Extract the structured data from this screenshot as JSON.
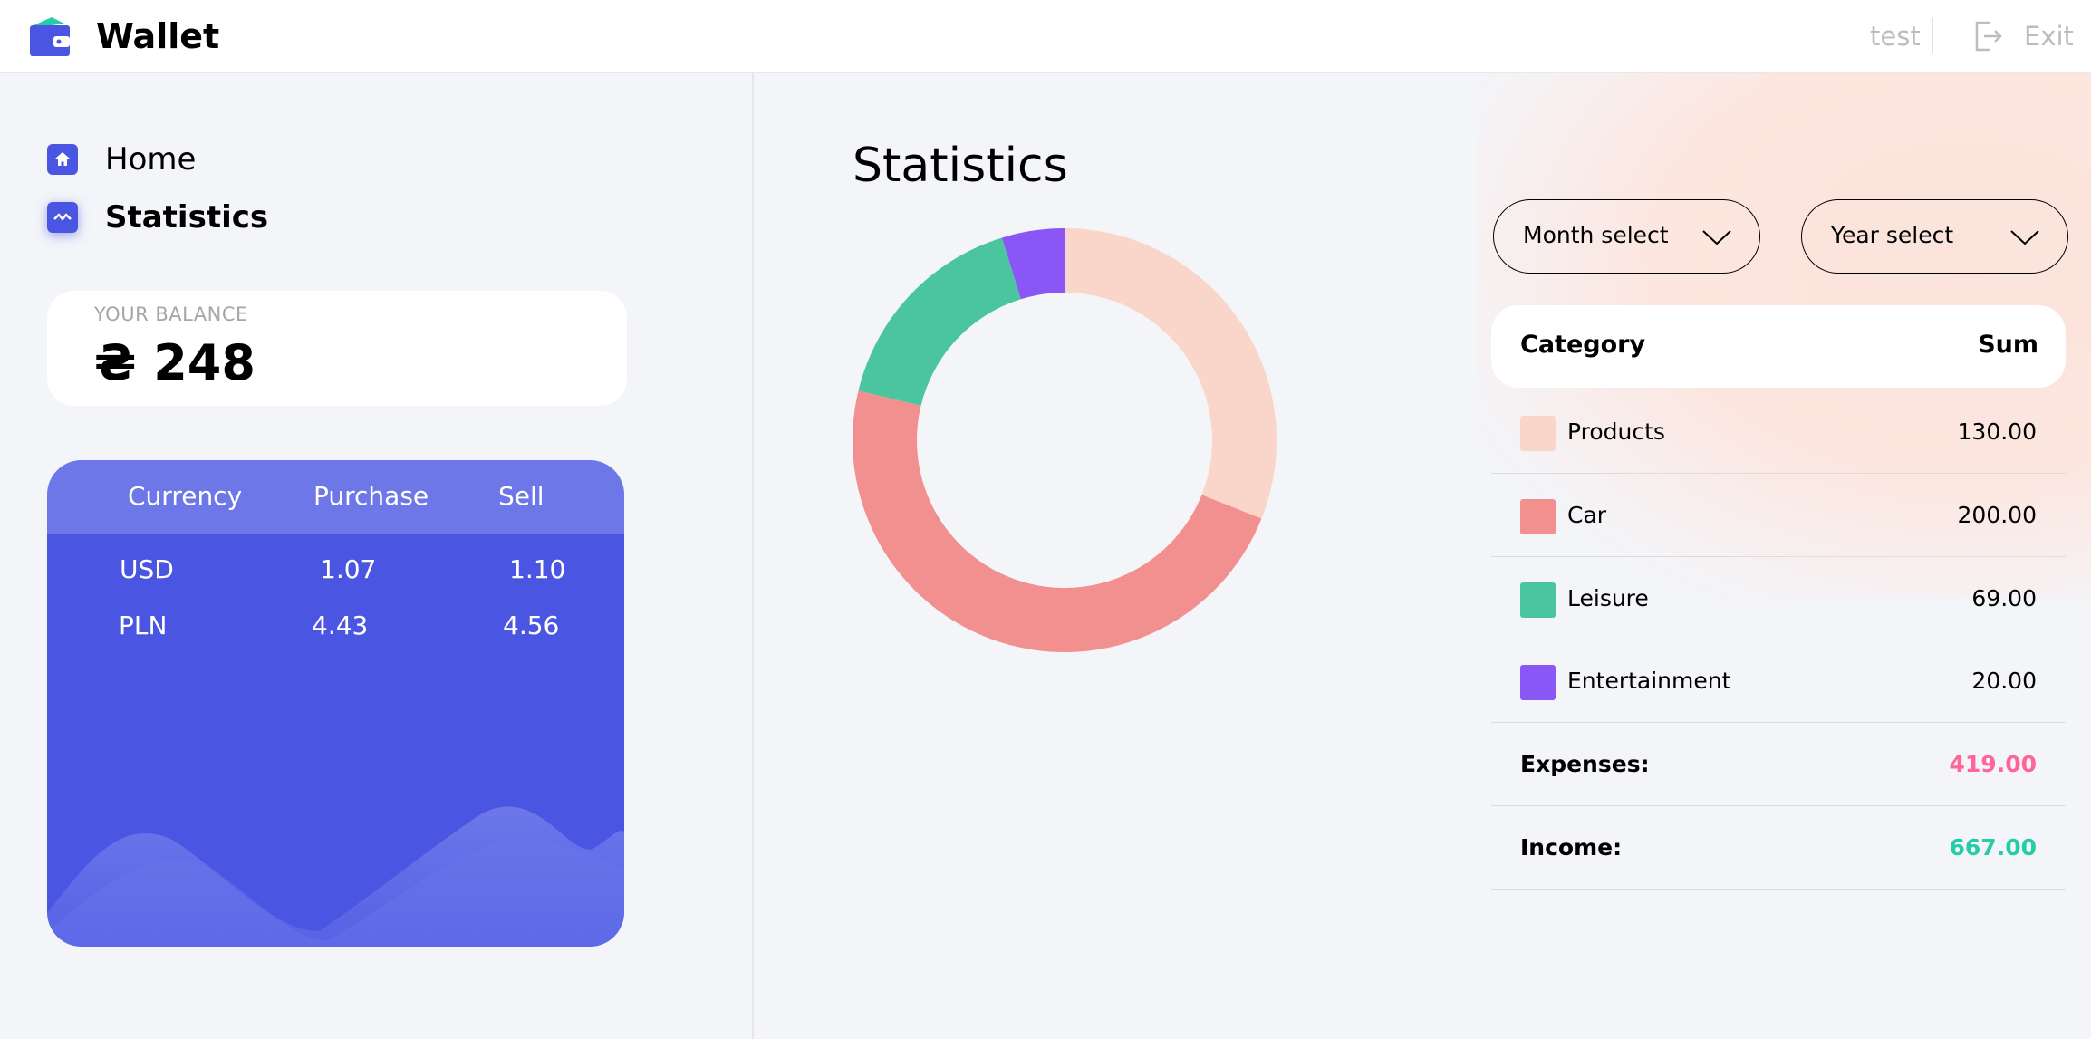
{
  "header": {
    "logo_text": "Wallet",
    "user_name": "test",
    "exit_label": "Exit"
  },
  "sidebar": {
    "items": [
      {
        "label": "Home",
        "icon": "home-icon",
        "active": false
      },
      {
        "label": "Statistics",
        "icon": "statistics-icon",
        "active": true
      }
    ]
  },
  "balance": {
    "label": "Your balance",
    "value": "₴ 248"
  },
  "currency": {
    "headers": [
      "Currency",
      "Purchase",
      "Sell"
    ],
    "rows": [
      {
        "currency": "USD",
        "purchase": "1.07",
        "sell": "1.10"
      },
      {
        "currency": "PLN",
        "purchase": "4.43",
        "sell": "4.56"
      }
    ]
  },
  "statistics": {
    "title": "Statistics",
    "month_select": "Month select",
    "year_select": "Year select",
    "table": {
      "header_category": "Category",
      "header_sum": "Sum",
      "rows": [
        {
          "label": "Products",
          "sum": "130.00",
          "color": "#fad5c9"
        },
        {
          "label": "Car",
          "sum": "200.00",
          "color": "#f28f8f"
        },
        {
          "label": "Leisure",
          "sum": "69.00",
          "color": "#4bc59e"
        },
        {
          "label": "Entertainment",
          "sum": "20.00",
          "color": "#8a56f5"
        }
      ],
      "expenses_label": "Expenses:",
      "expenses_value": "419.00",
      "expenses_color": "#ff6596",
      "income_label": "Income:",
      "income_value": "667.00",
      "income_color": "#24cca7"
    }
  },
  "chart_data": {
    "type": "pie",
    "categories": [
      "Products",
      "Car",
      "Leisure",
      "Entertainment"
    ],
    "values": [
      130,
      200,
      69,
      20
    ],
    "colors": [
      "#fad5c9",
      "#f28f8f",
      "#4bc59e",
      "#8a56f5"
    ]
  },
  "colors": {
    "accent": "#4a56e2",
    "background": "#f4f5f9"
  }
}
